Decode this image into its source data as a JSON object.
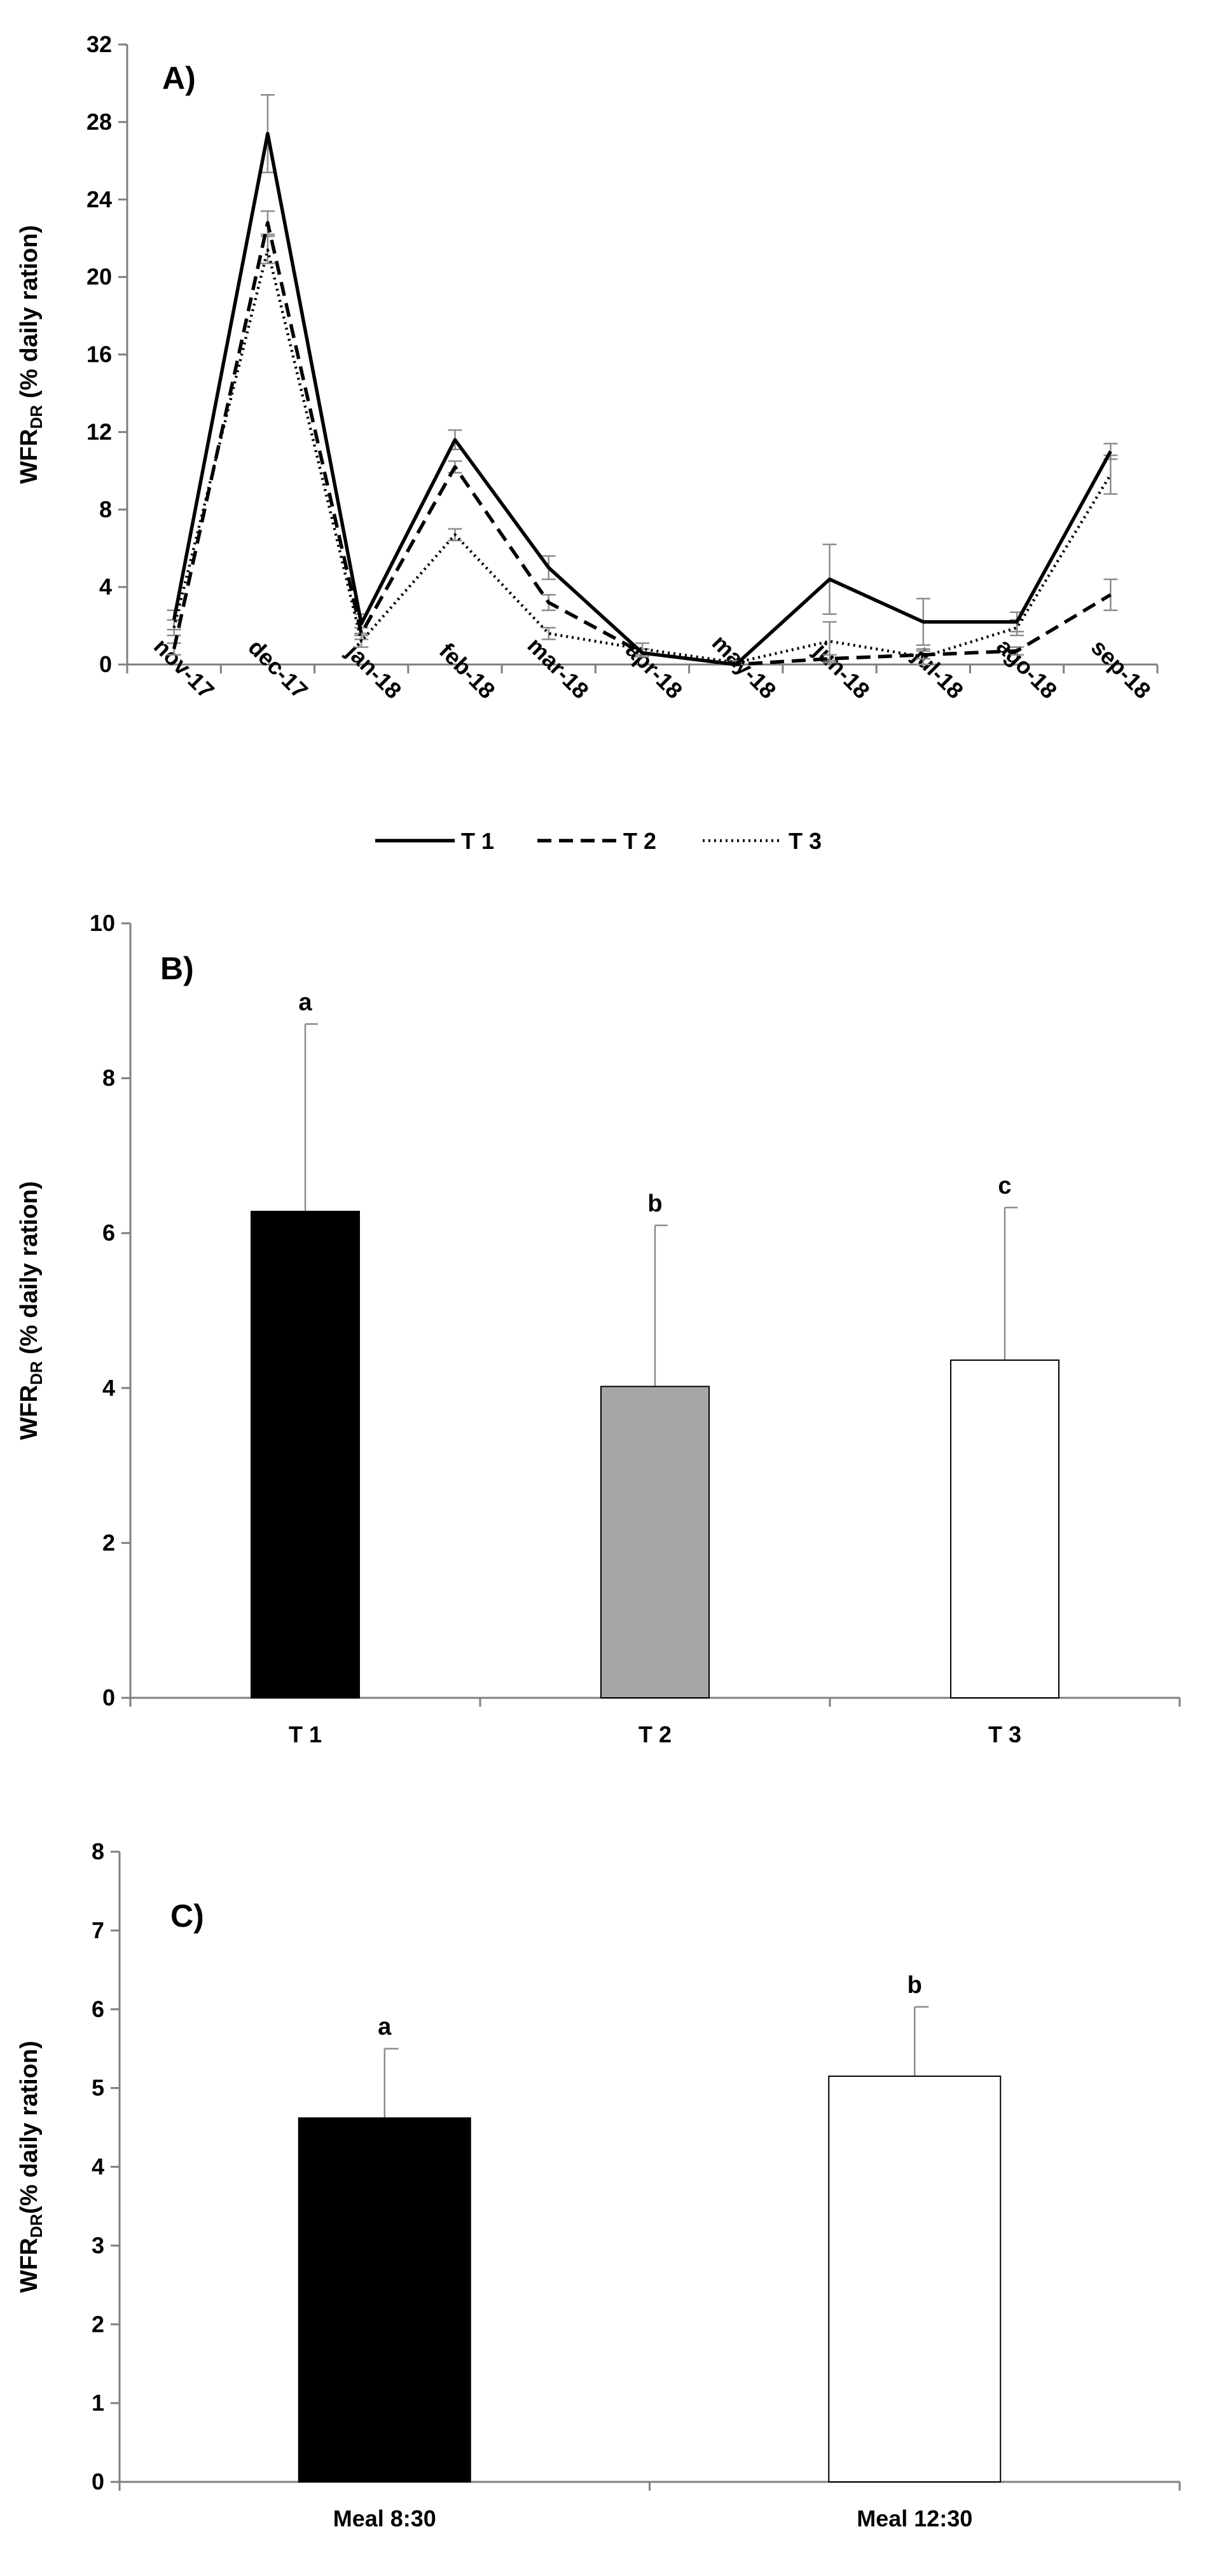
{
  "chart_data": [
    {
      "type": "line",
      "title": "A)",
      "ylabel": {
        "main": "WFR",
        "sub": "DR",
        "rest": " (% daily ration)"
      },
      "categories": [
        "nov-17",
        "dec-17",
        "jan-18",
        "feb-18",
        "mar-18",
        "apr-18",
        "may-18",
        "jun-18",
        "jul-18",
        "ago-18",
        "sep-18"
      ],
      "ylim": [
        0,
        32
      ],
      "yticks": [
        0,
        4,
        8,
        12,
        16,
        20,
        24,
        28,
        32
      ],
      "series": [
        {
          "name": "T 1",
          "style": "solid",
          "values": [
            2.3,
            27.4,
            2.1,
            11.6,
            5.0,
            0.6,
            0.0,
            4.4,
            2.2,
            2.2,
            11.0
          ],
          "errors": [
            0.5,
            2.0,
            0.5,
            0.5,
            0.6,
            0.2,
            0.0,
            1.8,
            1.2,
            0.5,
            0.4
          ]
        },
        {
          "name": "T 2",
          "style": "dashed",
          "values": [
            0.8,
            22.8,
            1.6,
            10.2,
            3.2,
            0.6,
            0.0,
            0.3,
            0.5,
            0.7,
            3.6
          ],
          "errors": [
            0.3,
            0.6,
            0.3,
            0.3,
            0.4,
            0.2,
            0.0,
            0.2,
            0.2,
            0.2,
            0.8
          ]
        },
        {
          "name": "T 3",
          "style": "dotted",
          "values": [
            1.9,
            21.4,
            1.2,
            6.7,
            1.6,
            0.8,
            0.1,
            1.2,
            0.4,
            1.9,
            9.8
          ],
          "errors": [
            0.4,
            0.7,
            0.3,
            0.3,
            0.3,
            0.3,
            0.1,
            1.0,
            0.4,
            0.4,
            1.0
          ]
        }
      ]
    },
    {
      "type": "bar",
      "title": "B)",
      "ylabel": {
        "main": "WFR",
        "sub": "DR",
        "rest": " (% daily ration)"
      },
      "categories": [
        "T 1",
        "T 2",
        "T 3"
      ],
      "values": [
        6.28,
        4.02,
        4.36
      ],
      "errors": [
        2.42,
        2.08,
        1.97
      ],
      "letters": [
        "a",
        "b",
        "c"
      ],
      "colors": [
        "#000000",
        "#a6a6a6",
        "#ffffff"
      ],
      "ylim": [
        0,
        10
      ],
      "yticks": [
        0,
        2,
        4,
        6,
        8,
        10
      ]
    },
    {
      "type": "bar",
      "title": "C)",
      "ylabel": {
        "main": "WFR",
        "sub": "DR",
        "rest": "(% daily ration)"
      },
      "categories": [
        "Meal 8:30",
        "Meal 12:30"
      ],
      "values": [
        4.62,
        5.15
      ],
      "errors": [
        0.88,
        0.88
      ],
      "letters": [
        "a",
        "b"
      ],
      "colors": [
        "#000000",
        "#ffffff"
      ],
      "ylim": [
        0,
        8
      ],
      "yticks": [
        0,
        1,
        2,
        3,
        4,
        5,
        6,
        7,
        8
      ]
    }
  ]
}
